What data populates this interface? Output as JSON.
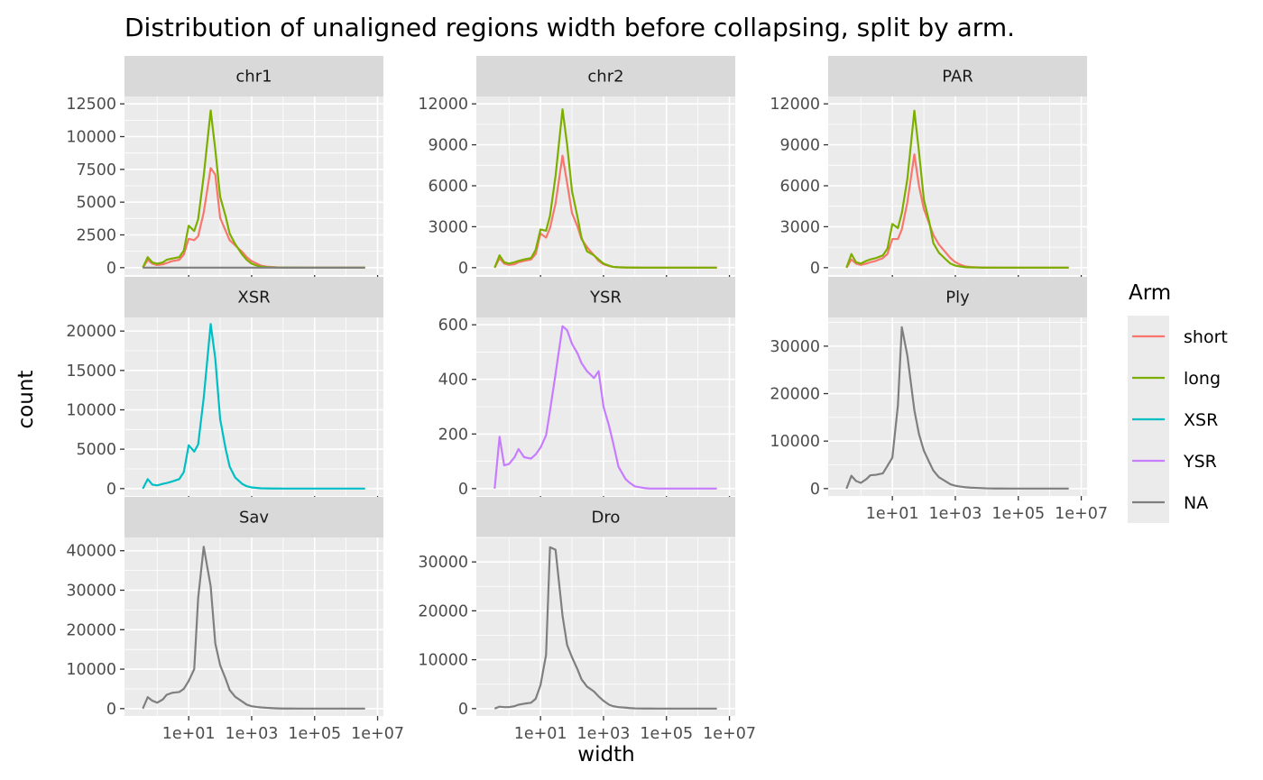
{
  "chart_data": {
    "type": "line",
    "title": "Distribution of unaligned regions width before collapsing, split by arm.",
    "xlabel": "width",
    "ylabel": "count",
    "x_scale": "log10",
    "xlim": [
      0.2,
      7000000
    ],
    "x_ticks": [
      10,
      1000,
      100000,
      10000000
    ],
    "x_tick_labels": [
      "1e+01",
      "1e+03",
      "1e+05",
      "1e+07"
    ],
    "x": [
      0.35,
      0.5,
      0.7,
      1,
      1.5,
      2,
      3,
      5,
      7,
      10,
      15,
      20,
      30,
      50,
      70,
      100,
      150,
      200,
      300,
      500,
      700,
      1000,
      1500,
      2000,
      3000,
      5000,
      7000,
      10000,
      20000,
      30000,
      50000,
      100000,
      200000,
      500000,
      1000000,
      2000000,
      4000000
    ],
    "grid": true,
    "legend": {
      "title": "Arm",
      "position": "right",
      "entries": [
        {
          "label": "short",
          "color": "#F8766D"
        },
        {
          "label": "long",
          "color": "#7CAE00"
        },
        {
          "label": "XSR",
          "color": "#00BFC4"
        },
        {
          "label": "YSR",
          "color": "#C77CFF"
        },
        {
          "label": "NA",
          "color": "#7F7F7F"
        }
      ]
    },
    "panels": [
      {
        "strip": "chr1",
        "ylim": [
          0,
          12500
        ],
        "y_ticks": [
          0,
          2500,
          5000,
          7500,
          10000,
          12500
        ],
        "y_tick_labels": [
          "0",
          "2500",
          "5000",
          "7500",
          "10000",
          "12500"
        ],
        "show_x_labels": false,
        "series": [
          {
            "name": "short",
            "color": "#F8766D",
            "values": [
              0,
              600,
              300,
              200,
              250,
              350,
              500,
              600,
              1000,
              2200,
              2100,
              2400,
              4200,
              7600,
              7100,
              3800,
              2800,
              2100,
              1700,
              1200,
              800,
              500,
              300,
              150,
              80,
              40,
              20,
              10,
              5,
              3,
              2,
              1,
              0,
              0,
              0,
              0,
              0
            ]
          },
          {
            "name": "long",
            "color": "#7CAE00",
            "values": [
              0,
              800,
              400,
              300,
              400,
              600,
              700,
              800,
              1300,
              3200,
              2800,
              3700,
              7000,
              12000,
              9000,
              5400,
              3900,
              2600,
              1800,
              1000,
              600,
              300,
              150,
              80,
              40,
              20,
              10,
              5,
              3,
              2,
              1,
              0,
              0,
              0,
              0,
              0,
              0
            ]
          },
          {
            "name": "NA",
            "color": "#7F7F7F",
            "values": [
              0,
              0,
              0,
              0,
              0,
              0,
              0,
              0,
              0,
              0,
              0,
              0,
              0,
              0,
              0,
              0,
              0,
              0,
              0,
              0,
              0,
              0,
              0,
              0,
              0,
              0,
              0,
              0,
              0,
              0,
              0,
              0,
              0,
              0,
              0,
              0,
              0
            ]
          }
        ]
      },
      {
        "strip": "chr2",
        "ylim": [
          0,
          12000
        ],
        "y_ticks": [
          0,
          3000,
          6000,
          9000,
          12000
        ],
        "y_tick_labels": [
          "0",
          "3000",
          "6000",
          "9000",
          "12000"
        ],
        "show_x_labels": false,
        "series": [
          {
            "name": "short",
            "color": "#F8766D",
            "values": [
              0,
              700,
              300,
              200,
              250,
              400,
              500,
              600,
              1000,
              2500,
              2200,
              2900,
              4700,
              8200,
              6200,
              4000,
              3000,
              2100,
              1500,
              900,
              500,
              250,
              120,
              60,
              30,
              15,
              8,
              4,
              2,
              1,
              0,
              0,
              0,
              0,
              0,
              0,
              0
            ]
          },
          {
            "name": "long",
            "color": "#7CAE00",
            "values": [
              0,
              900,
              400,
              300,
              400,
              500,
              600,
              700,
              1300,
              2800,
              2700,
              3800,
              6700,
              11600,
              9000,
              5600,
              3700,
              2200,
              1200,
              900,
              600,
              300,
              150,
              60,
              30,
              15,
              8,
              4,
              2,
              1,
              0,
              0,
              0,
              0,
              0,
              0,
              0
            ]
          }
        ]
      },
      {
        "strip": "PAR",
        "ylim": [
          0,
          12000
        ],
        "y_ticks": [
          0,
          3000,
          6000,
          9000,
          12000
        ],
        "y_tick_labels": [
          "0",
          "3000",
          "6000",
          "9000",
          "12000"
        ],
        "show_x_labels": false,
        "series": [
          {
            "name": "short",
            "color": "#F8766D",
            "values": [
              0,
              600,
              300,
              200,
              300,
              400,
              500,
              700,
              1000,
              2100,
              2100,
              2800,
              4800,
              8300,
              6000,
              4300,
              3200,
              2400,
              1700,
              1100,
              700,
              400,
              200,
              100,
              50,
              25,
              12,
              6,
              3,
              1,
              0,
              0,
              0,
              0,
              0,
              0,
              0
            ]
          },
          {
            "name": "long",
            "color": "#7CAE00",
            "values": [
              0,
              1000,
              400,
              300,
              500,
              600,
              700,
              900,
              1400,
              3200,
              2900,
              4000,
              6500,
              11500,
              8500,
              5000,
              3300,
              1800,
              1100,
              600,
              300,
              150,
              80,
              40,
              20,
              10,
              5,
              2,
              1,
              0,
              0,
              0,
              0,
              0,
              0,
              0,
              0
            ]
          }
        ]
      },
      {
        "strip": "XSR",
        "ylim": [
          0,
          20800
        ],
        "y_ticks": [
          0,
          5000,
          10000,
          15000,
          20000
        ],
        "y_tick_labels": [
          "0",
          "5000",
          "10000",
          "15000",
          "20000"
        ],
        "show_x_labels": false,
        "series": [
          {
            "name": "XSR",
            "color": "#00BFC4",
            "values": [
              0,
              1200,
              500,
              400,
              600,
              700,
              900,
              1200,
              2100,
              5500,
              4700,
              5600,
              11500,
              20900,
              16500,
              8800,
              5000,
              2800,
              1400,
              600,
              300,
              150,
              80,
              40,
              20,
              10,
              5,
              3,
              1,
              0,
              0,
              0,
              0,
              0,
              0,
              0,
              0
            ]
          }
        ]
      },
      {
        "strip": "YSR",
        "ylim": [
          0,
          600
        ],
        "y_ticks": [
          0,
          200,
          400,
          600
        ],
        "y_tick_labels": [
          "0",
          "200",
          "400",
          "600"
        ],
        "show_x_labels": false,
        "series": [
          {
            "name": "YSR",
            "color": "#C77CFF",
            "values": [
              0,
              190,
              85,
              90,
              115,
              145,
              115,
              110,
              125,
              150,
              195,
              285,
              420,
              595,
              580,
              530,
              495,
              460,
              430,
              405,
              430,
              300,
              230,
              170,
              80,
              35,
              20,
              8,
              2,
              0,
              0,
              0,
              0,
              0,
              0,
              0,
              0
            ]
          }
        ]
      },
      {
        "strip": "Ply",
        "ylim": [
          0,
          34500
        ],
        "y_ticks": [
          0,
          10000,
          20000,
          30000
        ],
        "y_tick_labels": [
          "0",
          "10000",
          "20000",
          "30000"
        ],
        "show_x_labels": true,
        "series": [
          {
            "name": "NA",
            "color": "#7F7F7F",
            "values": [
              0,
              2700,
              1600,
              1200,
              2000,
              2800,
              2900,
              3200,
              4800,
              6500,
              17500,
              34000,
              28000,
              16500,
              11500,
              8000,
              5500,
              3800,
              2400,
              1500,
              900,
              600,
              400,
              300,
              200,
              150,
              100,
              50,
              20,
              10,
              5,
              2,
              0,
              0,
              0,
              0,
              0
            ]
          }
        ]
      },
      {
        "strip": "Sav",
        "ylim": [
          0,
          41500
        ],
        "y_ticks": [
          0,
          10000,
          20000,
          30000,
          40000
        ],
        "y_tick_labels": [
          "0",
          "10000",
          "20000",
          "30000",
          "40000"
        ],
        "show_x_labels": true,
        "series": [
          {
            "name": "NA",
            "color": "#7F7F7F",
            "values": [
              0,
              2900,
              2000,
              1500,
              2300,
              3500,
              4000,
              4200,
              5000,
              7000,
              10000,
              28000,
              41000,
              31000,
              16500,
              11000,
              7500,
              4700,
              3000,
              1800,
              1000,
              600,
              400,
              300,
              200,
              100,
              50,
              20,
              10,
              5,
              2,
              0,
              0,
              0,
              0,
              0,
              0
            ]
          }
        ]
      },
      {
        "strip": "Dro",
        "ylim": [
          0,
          33500
        ],
        "y_ticks": [
          0,
          10000,
          20000,
          30000
        ],
        "y_tick_labels": [
          "0",
          "10000",
          "20000",
          "30000"
        ],
        "show_x_labels": true,
        "series": [
          {
            "name": "NA",
            "color": "#7F7F7F",
            "values": [
              0,
              400,
              300,
              300,
              500,
              800,
              1000,
              1200,
              2000,
              4800,
              11000,
              33000,
              32500,
              19000,
              13000,
              10500,
              8000,
              6000,
              4500,
              3500,
              2500,
              1600,
              800,
              500,
              300,
              200,
              100,
              50,
              20,
              10,
              5,
              0,
              0,
              0,
              0,
              0,
              0
            ]
          }
        ]
      }
    ]
  }
}
